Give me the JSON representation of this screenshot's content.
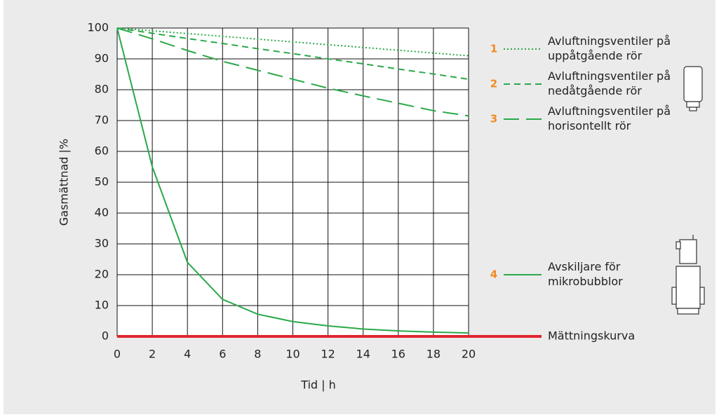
{
  "chart_data": {
    "type": "line",
    "xlabel": "Tid | h",
    "ylabel": "Gasmättnad |%",
    "x": [
      0,
      2,
      4,
      6,
      8,
      10,
      12,
      14,
      16,
      18,
      20
    ],
    "xlim": [
      0,
      20
    ],
    "xticks": [
      0,
      2,
      4,
      6,
      8,
      10,
      12,
      14,
      16,
      18,
      20
    ],
    "ylim": [
      0,
      100
    ],
    "yticks": [
      0,
      10,
      20,
      30,
      40,
      50,
      60,
      70,
      80,
      90,
      100
    ],
    "grid": true,
    "series": [
      {
        "number": "1",
        "name": [
          "Avluftningsventiler på",
          "uppåtgående rör"
        ],
        "color": "#2aa84a",
        "dash": "2,3",
        "values": [
          100,
          99.1,
          98.2,
          97.3,
          96.4,
          95.5,
          94.6,
          93.7,
          92.8,
          91.9,
          91
        ]
      },
      {
        "number": "2",
        "name": [
          "Avluftningsventiler på",
          "nedåtgående rör"
        ],
        "color": "#2aa84a",
        "dash": "9,6",
        "values": [
          100,
          98.3,
          96.6,
          95,
          93.3,
          91.7,
          90,
          88.4,
          86.7,
          85.1,
          83.4
        ]
      },
      {
        "number": "3",
        "name": [
          "Avluftningsventiler på",
          "horisontellt rör"
        ],
        "color": "#2aa84a",
        "dash": "22,10",
        "values": [
          100,
          96.5,
          92.7,
          89.2,
          86.3,
          83.4,
          80.5,
          78,
          75.6,
          73.2,
          71.5
        ]
      },
      {
        "number": "4",
        "name": [
          "Avskiljare för",
          "mikrobubblor"
        ],
        "color": "#2aa84a",
        "dash": "none",
        "values": [
          100,
          55,
          24,
          12,
          7.2,
          4.8,
          3.4,
          2.4,
          1.8,
          1.4,
          1.1
        ]
      },
      {
        "name": [
          "Mättningskurva"
        ],
        "color": "#e0262e",
        "dash": "none",
        "width": 4,
        "values": [
          0,
          0,
          0,
          0,
          0,
          0,
          0,
          0,
          0,
          0,
          0
        ]
      }
    ],
    "number_color": "#f08a24"
  }
}
